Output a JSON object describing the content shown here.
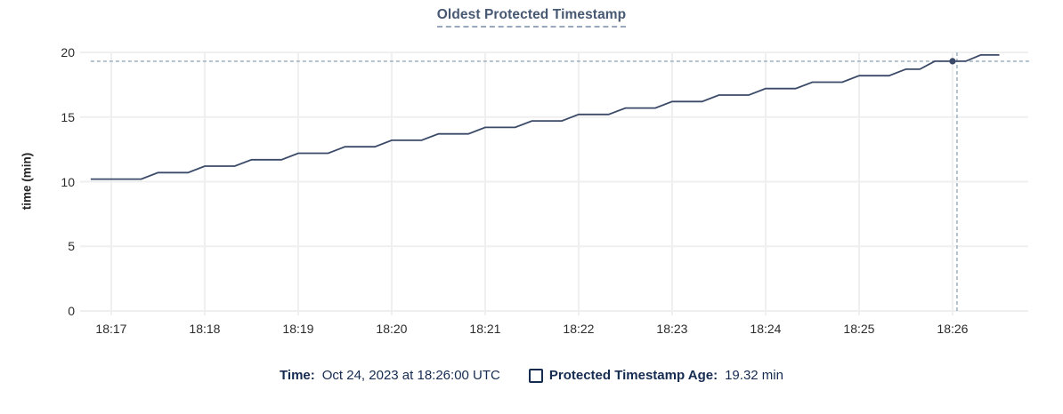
{
  "title": "Oldest Protected Timestamp",
  "ylabel": "time (min)",
  "legend": {
    "time_label": "Time:",
    "time_value": "Oct 24, 2023 at 18:26:00 UTC",
    "age_label": "Protected Timestamp Age:",
    "age_value": "19.32 min"
  },
  "colors": {
    "title": "#475872",
    "title_underline": "#9aa8bf",
    "line": "#3b4a68",
    "crosshair": "#a3b5c3",
    "grid": "#efefef",
    "tick_text": "#2b2b2b",
    "axis_title_text": "#242424",
    "legend_text": "#152b50"
  },
  "chart_data": {
    "type": "line",
    "title": "Oldest Protected Timestamp",
    "xlabel": "",
    "ylabel": "time (min)",
    "grid": true,
    "legend_position": "bottom",
    "x_tick_labels": [
      "18:17",
      "18:18",
      "18:19",
      "18:20",
      "18:21",
      "18:22",
      "18:23",
      "18:24",
      "18:25",
      "18:26"
    ],
    "x_tick_minutes": [
      17,
      18,
      19,
      20,
      21,
      22,
      23,
      24,
      25,
      26
    ],
    "y_ticks": [
      0,
      5,
      10,
      15,
      20
    ],
    "ylim": [
      0,
      20
    ],
    "x_range_minutes": [
      16.667,
      26.81
    ],
    "series": [
      {
        "name": "Protected Timestamp Age",
        "unit": "min",
        "points": [
          [
            16.78,
            10.2
          ],
          [
            17.32,
            10.2
          ],
          [
            17.5,
            10.7
          ],
          [
            17.82,
            10.7
          ],
          [
            18.0,
            11.2
          ],
          [
            18.32,
            11.2
          ],
          [
            18.5,
            11.7
          ],
          [
            18.82,
            11.7
          ],
          [
            19.0,
            12.2
          ],
          [
            19.32,
            12.2
          ],
          [
            19.5,
            12.7
          ],
          [
            19.82,
            12.7
          ],
          [
            20.0,
            13.2
          ],
          [
            20.32,
            13.2
          ],
          [
            20.5,
            13.7
          ],
          [
            20.82,
            13.7
          ],
          [
            21.0,
            14.2
          ],
          [
            21.32,
            14.2
          ],
          [
            21.5,
            14.7
          ],
          [
            21.82,
            14.7
          ],
          [
            22.0,
            15.2
          ],
          [
            22.32,
            15.2
          ],
          [
            22.5,
            15.7
          ],
          [
            22.82,
            15.7
          ],
          [
            23.0,
            16.2
          ],
          [
            23.32,
            16.2
          ],
          [
            23.5,
            16.7
          ],
          [
            23.82,
            16.7
          ],
          [
            24.0,
            17.2
          ],
          [
            24.32,
            17.2
          ],
          [
            24.5,
            17.7
          ],
          [
            24.82,
            17.7
          ],
          [
            25.0,
            18.2
          ],
          [
            25.32,
            18.2
          ],
          [
            25.5,
            18.7
          ],
          [
            25.65,
            18.7
          ],
          [
            25.81,
            19.32
          ],
          [
            26.14,
            19.32
          ],
          [
            26.3,
            19.8
          ],
          [
            26.5,
            19.8
          ]
        ]
      }
    ],
    "hover": {
      "x_minute": 26.0,
      "x_time": "18:26:00",
      "value": 19.32
    }
  }
}
